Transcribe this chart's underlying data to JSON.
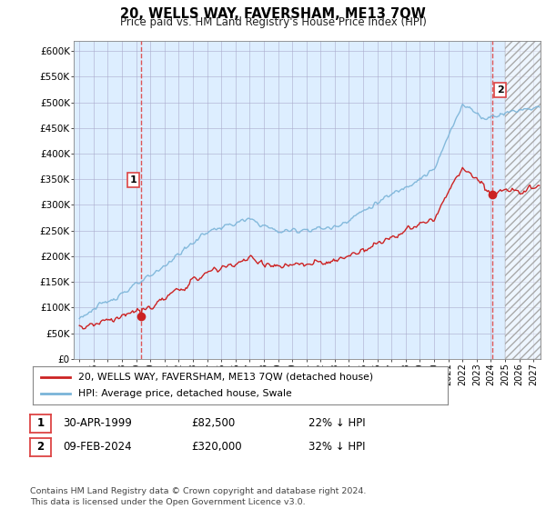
{
  "title": "20, WELLS WAY, FAVERSHAM, ME13 7QW",
  "subtitle": "Price paid vs. HM Land Registry's House Price Index (HPI)",
  "ylabel_ticks": [
    "£0",
    "£50K",
    "£100K",
    "£150K",
    "£200K",
    "£250K",
    "£300K",
    "£350K",
    "£400K",
    "£450K",
    "£500K",
    "£550K",
    "£600K"
  ],
  "ytick_values": [
    0,
    50000,
    100000,
    150000,
    200000,
    250000,
    300000,
    350000,
    400000,
    450000,
    500000,
    550000,
    600000
  ],
  "sale1_date": 1999.33,
  "sale1_price": 82500,
  "sale1_label": "1",
  "sale2_date": 2024.1,
  "sale2_price": 320000,
  "sale2_label": "2",
  "hpi_color": "#7ab4d8",
  "price_color": "#cc2222",
  "vline_color": "#dd4444",
  "chart_bg": "#ddeeff",
  "hatch_bg": "#cccccc",
  "background_color": "#ffffff",
  "grid_color": "#aaaacc",
  "legend_entry1": "20, WELLS WAY, FAVERSHAM, ME13 7QW (detached house)",
  "legend_entry2": "HPI: Average price, detached house, Swale",
  "table_row1": [
    "1",
    "30-APR-1999",
    "£82,500",
    "22% ↓ HPI"
  ],
  "table_row2": [
    "2",
    "09-FEB-2024",
    "£320,000",
    "32% ↓ HPI"
  ],
  "footnote": "Contains HM Land Registry data © Crown copyright and database right 2024.\nThis data is licensed under the Open Government Licence v3.0.",
  "ylim": [
    0,
    620000
  ],
  "xlim_start": 1994.6,
  "xlim_end": 2027.5,
  "future_start": 2025.0
}
